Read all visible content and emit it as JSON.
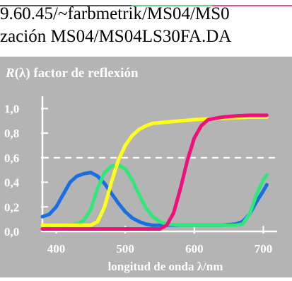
{
  "header": {
    "line1": "9.60.45/~farbmetrik/MS04/MS0",
    "line2": "zación MS04/MS04LS30FA.DA"
  },
  "colors": {
    "background": "#b4b4b4",
    "axes": "#ffffff",
    "dashed_line": "#ffffff",
    "blue": "#1a6fe0",
    "green": "#33e67a",
    "yellow": "#ffff1a",
    "magenta": "#f0107c"
  },
  "chart_data": {
    "type": "line",
    "title": "R(λ) factor de reflexión",
    "title_parts": [
      "R",
      "(λ) factor de reflexión"
    ],
    "xlabel": "longitud de onda λ/nm",
    "xlim": [
      380,
      720
    ],
    "ylim": [
      0,
      1.1
    ],
    "x_ticks": [
      400,
      500,
      600,
      700
    ],
    "x_tick_labels": [
      "400",
      "500",
      "600",
      "700"
    ],
    "y_ticks": [
      0.0,
      0.2,
      0.4,
      0.6,
      0.8,
      1.0
    ],
    "y_tick_labels": [
      "0,0",
      "0,2",
      "0,4",
      "0,6",
      "0,8",
      "1,0"
    ],
    "reference_line": 0.6,
    "series": [
      {
        "color": "blue",
        "x": [
          380,
          390,
          400,
          410,
          420,
          430,
          440,
          450,
          460,
          470,
          480,
          490,
          500,
          510,
          520,
          530,
          540,
          560,
          580,
          600,
          620,
          640,
          660,
          670,
          680,
          690,
          700,
          705
        ],
        "y": [
          0.12,
          0.14,
          0.2,
          0.3,
          0.4,
          0.45,
          0.47,
          0.48,
          0.45,
          0.39,
          0.31,
          0.23,
          0.16,
          0.11,
          0.08,
          0.06,
          0.05,
          0.05,
          0.05,
          0.05,
          0.05,
          0.05,
          0.06,
          0.08,
          0.14,
          0.24,
          0.33,
          0.38
        ]
      },
      {
        "color": "green",
        "x": [
          380,
          400,
          420,
          430,
          440,
          450,
          460,
          470,
          480,
          490,
          500,
          510,
          520,
          530,
          540,
          550,
          560,
          580,
          600,
          620,
          640,
          660,
          670,
          680,
          690,
          700,
          705
        ],
        "y": [
          0.05,
          0.05,
          0.05,
          0.06,
          0.09,
          0.18,
          0.35,
          0.48,
          0.53,
          0.54,
          0.51,
          0.42,
          0.3,
          0.19,
          0.12,
          0.08,
          0.06,
          0.05,
          0.05,
          0.05,
          0.05,
          0.05,
          0.06,
          0.14,
          0.3,
          0.42,
          0.46
        ]
      },
      {
        "color": "yellow",
        "x": [
          380,
          400,
          420,
          440,
          450,
          460,
          470,
          480,
          490,
          500,
          510,
          520,
          530,
          540,
          560,
          580,
          600,
          620,
          640,
          660,
          680,
          700,
          705
        ],
        "y": [
          0.05,
          0.05,
          0.05,
          0.05,
          0.05,
          0.08,
          0.2,
          0.4,
          0.58,
          0.7,
          0.78,
          0.83,
          0.86,
          0.88,
          0.89,
          0.9,
          0.91,
          0.915,
          0.92,
          0.925,
          0.93,
          0.93,
          0.93
        ]
      },
      {
        "color": "magenta",
        "x": [
          380,
          400,
          440,
          480,
          520,
          550,
          560,
          570,
          580,
          590,
          600,
          610,
          620,
          630,
          640,
          660,
          680,
          700,
          705
        ],
        "y": [
          0.02,
          0.02,
          0.02,
          0.02,
          0.02,
          0.02,
          0.05,
          0.15,
          0.35,
          0.58,
          0.76,
          0.86,
          0.91,
          0.92,
          0.93,
          0.94,
          0.945,
          0.945,
          0.945
        ]
      }
    ]
  }
}
